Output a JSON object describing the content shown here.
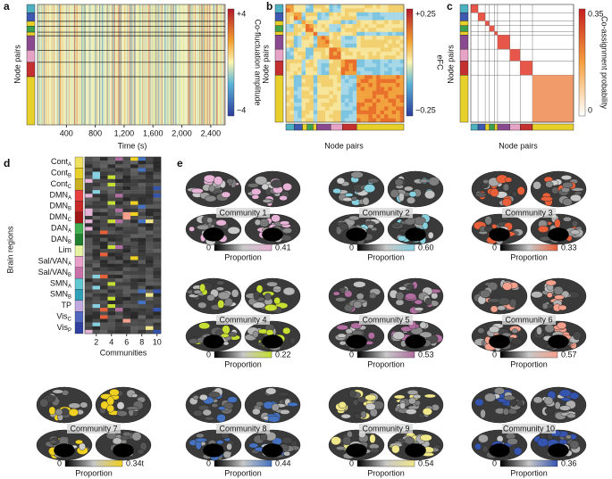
{
  "panel_a": {
    "label": "a",
    "ylabel": "Node pairs",
    "xlabel": "Time (s)",
    "xlim": [
      0,
      2600
    ],
    "xticks": [
      400,
      800,
      {
        "value": 1200,
        "label": "1,200"
      },
      {
        "value": 1600,
        "label": "1,600"
      },
      {
        "value": 2000,
        "label": "2,000"
      },
      {
        "value": 2400,
        "label": "2,400"
      }
    ],
    "colorbar": {
      "label": "Co-fluctuation amplitude",
      "max": "+4",
      "min": "−4"
    }
  },
  "panel_b": {
    "label": "b",
    "ylabel": "Node pairs",
    "xlabel": "Node pairs",
    "colorbar": {
      "label": "eFC",
      "max": "+0.25",
      "min": "−0.25"
    }
  },
  "panel_c": {
    "label": "c",
    "ylabel": "Node pairs",
    "xlabel": "Node pairs",
    "colorbar": {
      "label": "Co-assignment probability",
      "max": "0.35",
      "min": "0"
    }
  },
  "panel_d": {
    "label": "d",
    "ylabel": "Brain regions",
    "xlabel": "Communities",
    "xlim": [
      0.5,
      10.5
    ],
    "xticks": [
      2,
      4,
      6,
      8,
      10
    ],
    "systems": [
      {
        "name": "Cont",
        "sub": "A"
      },
      {
        "name": "Cont",
        "sub": "B"
      },
      {
        "name": "Cont",
        "sub": "C"
      },
      {
        "name": "DMN",
        "sub": "A"
      },
      {
        "name": "DMN",
        "sub": "B"
      },
      {
        "name": "DMN",
        "sub": "C"
      },
      {
        "name": "DAN",
        "sub": "A"
      },
      {
        "name": "DAN",
        "sub": "B"
      },
      {
        "name": "Lim"
      },
      {
        "name": "Sal/VAN",
        "sub": "A"
      },
      {
        "name": "Sal/VAN",
        "sub": "B"
      },
      {
        "name": "SMN",
        "sub": "A"
      },
      {
        "name": "SMN",
        "sub": "B"
      },
      {
        "name": "TP"
      },
      {
        "name": "Vis",
        "sub": "C"
      },
      {
        "name": "Vis",
        "sub": "P"
      }
    ]
  },
  "panel_e": {
    "label": "e",
    "communities": [
      {
        "title": "Community 1",
        "min": "0",
        "max": "0.41",
        "axis_label": "Proportion",
        "color": "#e6b3d6"
      },
      {
        "title": "Community 2",
        "min": "0",
        "max": "0.60",
        "axis_label": "Proportion",
        "color": "#86d0e0"
      },
      {
        "title": "Community 3",
        "min": "0",
        "max": "0.33",
        "axis_label": "Proportion",
        "color": "#e8603a"
      },
      {
        "title": "Community 4",
        "min": "0",
        "max": "0.22",
        "axis_label": "Proportion",
        "color": "#c6df32"
      },
      {
        "title": "Community 5",
        "min": "0",
        "max": "0.53",
        "axis_label": "Proportion",
        "color": "#b06ea0"
      },
      {
        "title": "Community 6",
        "min": "0",
        "max": "0.57",
        "axis_label": "Proportion",
        "color": "#f4a08c"
      },
      {
        "title": "Community 7",
        "min": "0",
        "max": "0.34t",
        "axis_label": "Proportion",
        "color": "#f0d020"
      },
      {
        "title": "Community 8",
        "min": "0",
        "max": "0.44",
        "axis_label": "Proportion",
        "color": "#4472c0"
      },
      {
        "title": "Community 9",
        "min": "0",
        "max": "0.54",
        "axis_label": "Proportion",
        "color": "#f0e68a"
      },
      {
        "title": "Community 10",
        "min": "0",
        "max": "0.36",
        "axis_label": "Proportion",
        "color": "#3454b0"
      }
    ]
  }
}
